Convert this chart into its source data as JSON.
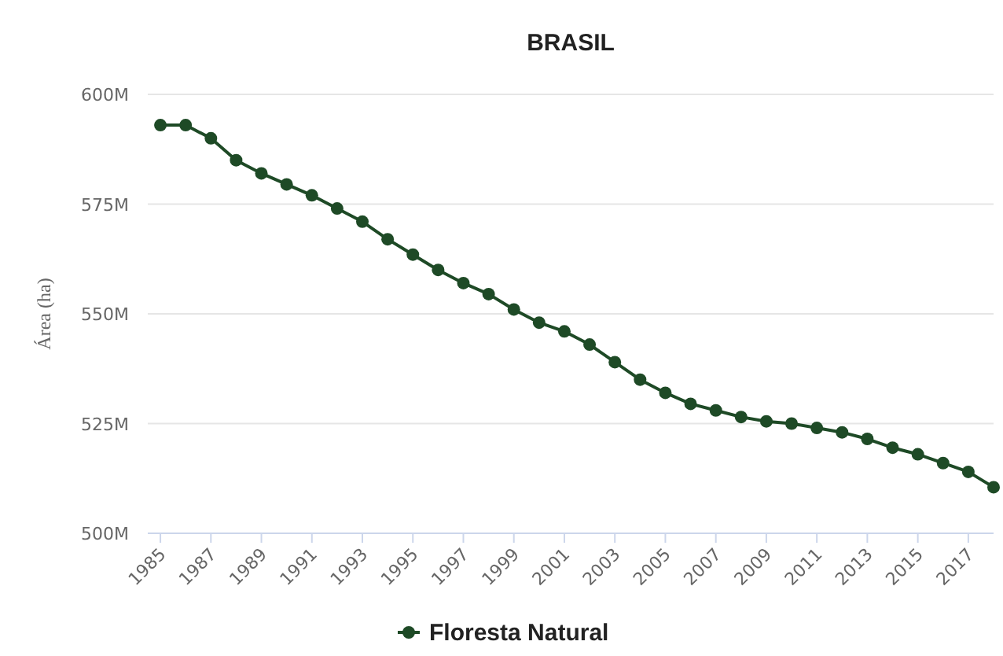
{
  "chart_data": {
    "type": "line",
    "title": "BRASIL",
    "ylabel": "Área (ha)",
    "x": [
      1985,
      1986,
      1987,
      1988,
      1989,
      1990,
      1991,
      1992,
      1993,
      1994,
      1995,
      1996,
      1997,
      1998,
      1999,
      2000,
      2001,
      2002,
      2003,
      2004,
      2005,
      2006,
      2007,
      2008,
      2009,
      2010,
      2011,
      2012,
      2013,
      2014,
      2015,
      2016,
      2017,
      2018
    ],
    "series": [
      {
        "name": "Floresta Natural",
        "color": "#1e4a26",
        "values": [
          593,
          593,
          590,
          585,
          582,
          579.5,
          577,
          574,
          571,
          567,
          563.5,
          560,
          557,
          554.5,
          551,
          548,
          546,
          543,
          539,
          535,
          532,
          529.5,
          528,
          526.5,
          525.5,
          525,
          524,
          523,
          521.5,
          519.5,
          518,
          516,
          514,
          510.5
        ]
      }
    ],
    "xlim": [
      1984.5,
      2018
    ],
    "xticks": [
      1985,
      1987,
      1989,
      1991,
      1993,
      1995,
      1997,
      1999,
      2001,
      2003,
      2005,
      2007,
      2009,
      2011,
      2013,
      2015,
      2017
    ],
    "ylim": [
      500,
      600
    ],
    "yticks": [
      {
        "value": 500,
        "label": "500M"
      },
      {
        "value": 525,
        "label": "525M"
      },
      {
        "value": 550,
        "label": "550M"
      },
      {
        "value": 575,
        "label": "575M"
      },
      {
        "value": 600,
        "label": "600M"
      }
    ],
    "grid": "y",
    "legend": "bottom",
    "marker": "circle",
    "line_style": "solid"
  }
}
